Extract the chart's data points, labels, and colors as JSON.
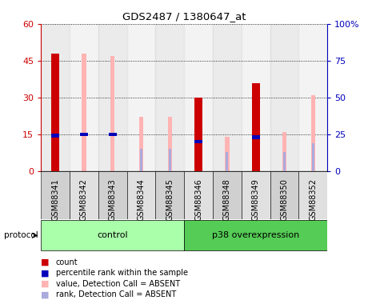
{
  "title": "GDS2487 / 1380647_at",
  "samples": [
    "GSM88341",
    "GSM88342",
    "GSM88343",
    "GSM88344",
    "GSM88345",
    "GSM88346",
    "GSM88348",
    "GSM88349",
    "GSM88350",
    "GSM88352"
  ],
  "groups": [
    {
      "label": "control",
      "color": "#aaffaa",
      "span": [
        0,
        4
      ]
    },
    {
      "label": "p38 overexpression",
      "color": "#55cc55",
      "span": [
        5,
        9
      ]
    }
  ],
  "red_bars": [
    48,
    0,
    0,
    0,
    0,
    30,
    0,
    36,
    0,
    0
  ],
  "blue_mark": [
    24,
    25,
    25,
    0,
    0,
    20,
    0,
    23,
    0,
    0
  ],
  "pink_bars": [
    0,
    48,
    47,
    22,
    22,
    0,
    14,
    0,
    16,
    31
  ],
  "lightblue_bars": [
    0,
    0,
    0,
    15,
    15,
    0,
    13,
    0,
    13,
    19
  ],
  "y_left_ticks": [
    0,
    15,
    30,
    45,
    60
  ],
  "y_right_ticks": [
    0,
    25,
    50,
    75,
    100
  ],
  "ylim_left": [
    0,
    60
  ],
  "ylim_right": [
    0,
    100
  ],
  "red_color": "#cc0000",
  "blue_color": "#0000bb",
  "pink_color": "#ffb3b3",
  "lightblue_color": "#aaaadd",
  "left_axis_color": "#cc0000",
  "right_axis_color": "#0000bb"
}
